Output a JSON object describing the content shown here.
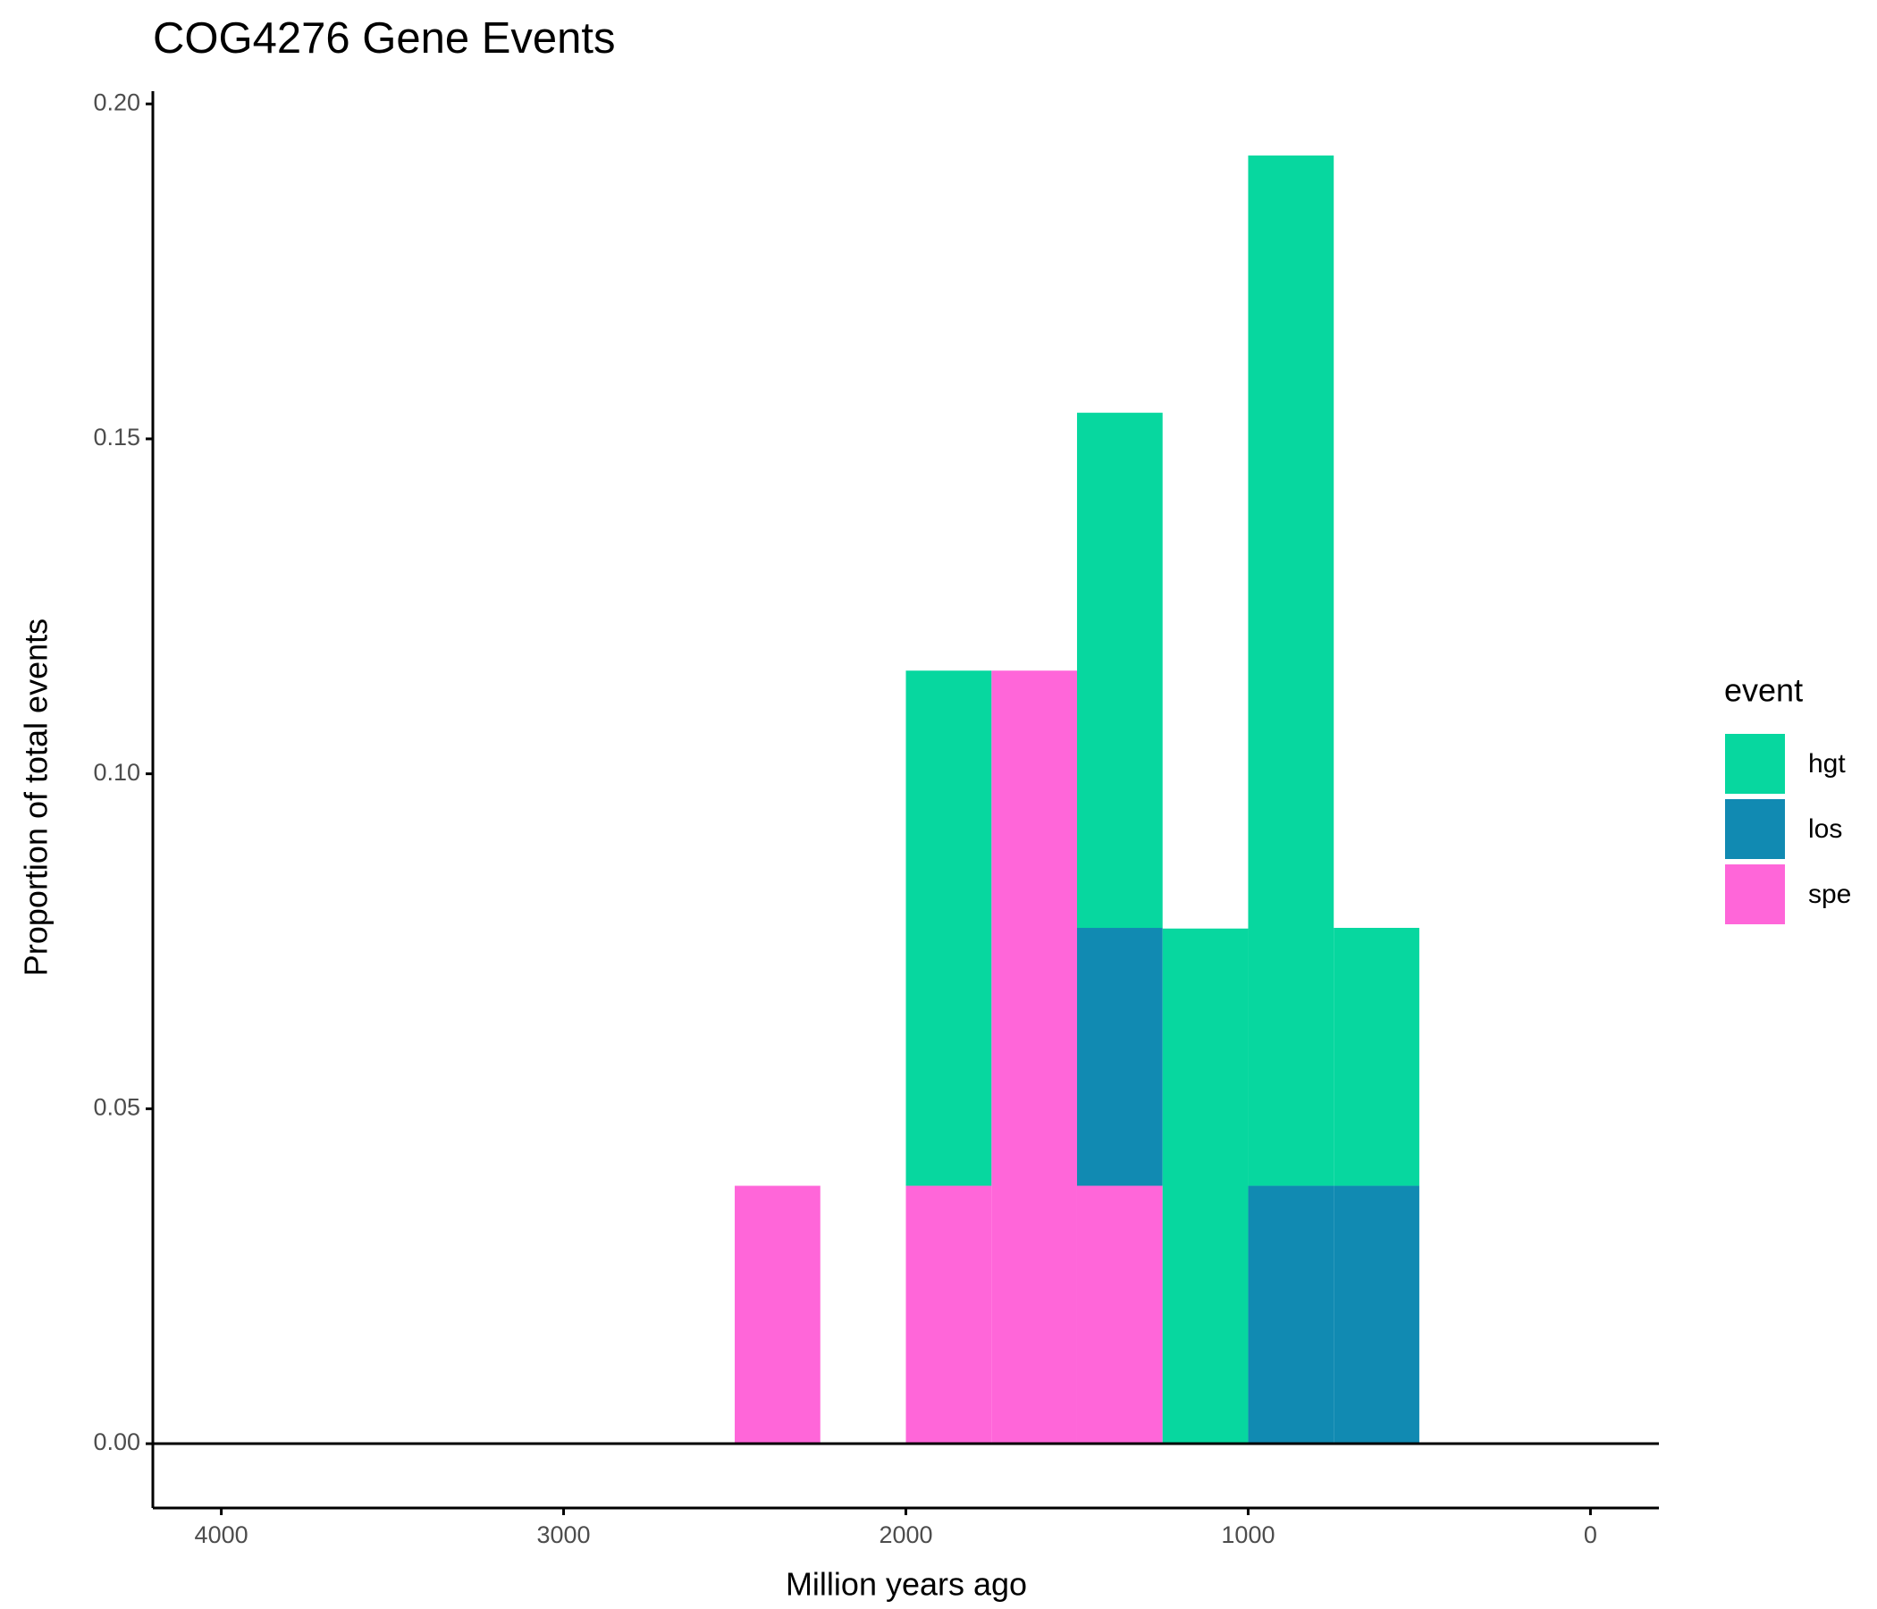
{
  "chart_data": {
    "type": "histogram",
    "title": "COG4276 Gene Events",
    "x_label": "Million years ago",
    "y_label": "Proportion of total events",
    "legend_title": "event",
    "legend_position": "right",
    "stacked": true,
    "bins": [
      2500,
      2250,
      2000,
      1750,
      1500,
      1250,
      1000,
      750,
      500
    ],
    "series": [
      {
        "name": "hgt",
        "color": "#07d79f",
        "values": [
          0,
          0,
          0.0769,
          0,
          0.0769,
          0.0769,
          0.1538,
          0.0385
        ]
      },
      {
        "name": "los",
        "color": "#118ab2",
        "values": [
          0,
          0,
          0,
          0,
          0.0385,
          0,
          0.0385,
          0.0385
        ]
      },
      {
        "name": "spe",
        "color": "#ff66d9",
        "values": [
          0.0385,
          0,
          0.0385,
          0.1154,
          0.0385,
          0,
          0,
          0
        ]
      }
    ],
    "xlim": [
      4200,
      -200
    ],
    "ylim": [
      -0.0096,
      0.2019
    ],
    "xticks": [
      4000,
      3000,
      2000,
      1000,
      0
    ],
    "yticks": [
      {
        "value": 0,
        "label": "0.00"
      },
      {
        "value": 0.05,
        "label": "0.05"
      },
      {
        "value": 0.1,
        "label": "0.10"
      },
      {
        "value": 0.15,
        "label": "0.15"
      },
      {
        "value": 0.2,
        "label": "0.20"
      }
    ],
    "hline": 0,
    "grid": false
  }
}
